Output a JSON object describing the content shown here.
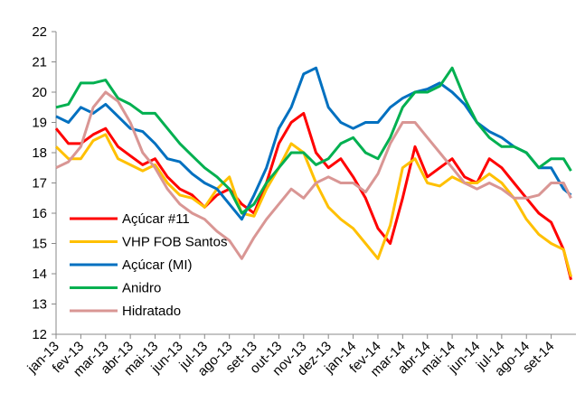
{
  "chart_data": {
    "type": "line",
    "x": [
      0,
      0.5,
      1,
      1.5,
      2,
      2.5,
      3,
      3.5,
      4,
      4.5,
      5,
      5.5,
      6,
      6.5,
      7,
      7.5,
      8,
      8.5,
      9,
      9.5,
      10,
      10.5,
      11,
      11.5,
      12,
      12.5,
      13,
      13.5,
      14,
      14.5,
      15,
      15.5,
      16,
      16.5,
      17,
      17.5,
      18,
      18.5,
      19,
      19.5,
      20,
      20.5,
      20.8
    ],
    "xlim": [
      0,
      21
    ],
    "xticks": [
      {
        "value": 0,
        "label": "jan-13"
      },
      {
        "value": 1,
        "label": "fev-13"
      },
      {
        "value": 2,
        "label": "mar-13"
      },
      {
        "value": 3,
        "label": "abr-13"
      },
      {
        "value": 4,
        "label": "mai-13"
      },
      {
        "value": 5,
        "label": "jun-13"
      },
      {
        "value": 6,
        "label": "jul-13"
      },
      {
        "value": 7,
        "label": "ago-13"
      },
      {
        "value": 8,
        "label": "set-13"
      },
      {
        "value": 9,
        "label": "out-13"
      },
      {
        "value": 10,
        "label": "nov-13"
      },
      {
        "value": 11,
        "label": "dez-13"
      },
      {
        "value": 12,
        "label": "jan-14"
      },
      {
        "value": 13,
        "label": "fev-14"
      },
      {
        "value": 14,
        "label": "mar-14"
      },
      {
        "value": 15,
        "label": "abr-14"
      },
      {
        "value": 16,
        "label": "mai-14"
      },
      {
        "value": 17,
        "label": "jun-14"
      },
      {
        "value": 18,
        "label": "jul-14"
      },
      {
        "value": 19,
        "label": "ago-14"
      },
      {
        "value": 20,
        "label": "set-14"
      }
    ],
    "ylim": [
      12,
      22
    ],
    "yticks": [
      12,
      13,
      14,
      15,
      16,
      17,
      18,
      19,
      20,
      21,
      22
    ],
    "legend": "lower left",
    "series": [
      {
        "name": "Açúcar #11",
        "color": "#ff0000",
        "values": [
          18.8,
          18.3,
          18.3,
          18.6,
          18.8,
          18.2,
          17.9,
          17.6,
          17.8,
          17.2,
          16.8,
          16.6,
          16.2,
          16.6,
          16.8,
          16.3,
          16.0,
          17.0,
          18.3,
          19.0,
          19.3,
          18.0,
          17.5,
          17.8,
          17.2,
          16.5,
          15.5,
          15.0,
          16.5,
          18.2,
          17.2,
          17.5,
          17.8,
          17.2,
          17.0,
          17.8,
          17.5,
          17.0,
          16.5,
          16.0,
          15.7,
          14.8,
          13.8
        ]
      },
      {
        "name": "VHP FOB Santos",
        "color": "#ffc000",
        "values": [
          18.2,
          17.8,
          17.8,
          18.4,
          18.6,
          17.8,
          17.6,
          17.4,
          17.6,
          17.0,
          16.6,
          16.5,
          16.2,
          16.8,
          17.2,
          16.0,
          15.9,
          16.8,
          17.5,
          18.3,
          18.0,
          17.0,
          16.2,
          15.8,
          15.5,
          15.0,
          14.5,
          15.6,
          17.5,
          17.8,
          17.0,
          16.9,
          17.2,
          17.0,
          17.0,
          17.3,
          17.0,
          16.5,
          15.8,
          15.3,
          15.0,
          14.8,
          13.9
        ]
      },
      {
        "name": "Açúcar (MI)",
        "color": "#0070c0",
        "values": [
          19.2,
          19.0,
          19.5,
          19.3,
          19.6,
          19.2,
          18.8,
          18.7,
          18.3,
          17.8,
          17.7,
          17.3,
          17.0,
          16.8,
          16.3,
          15.8,
          16.6,
          17.5,
          18.8,
          19.5,
          20.6,
          20.8,
          19.5,
          19.0,
          18.8,
          19.0,
          19.0,
          19.5,
          19.8,
          20.0,
          20.1,
          20.3,
          20.0,
          19.6,
          19.0,
          18.7,
          18.5,
          18.2,
          18.0,
          17.5,
          17.5,
          16.8,
          16.6
        ]
      },
      {
        "name": "Anidro",
        "color": "#00b050",
        "values": [
          19.5,
          19.6,
          20.3,
          20.3,
          20.4,
          19.8,
          19.6,
          19.3,
          19.3,
          18.8,
          18.3,
          17.9,
          17.5,
          17.2,
          16.8,
          16.0,
          16.3,
          17.0,
          17.5,
          18.0,
          18.0,
          17.6,
          17.8,
          18.3,
          18.5,
          18.0,
          17.8,
          18.5,
          19.5,
          20.0,
          20.0,
          20.2,
          20.8,
          19.8,
          19.0,
          18.5,
          18.2,
          18.2,
          18.0,
          17.5,
          17.8,
          17.8,
          17.4
        ]
      },
      {
        "name": "Hidratado",
        "color": "#d99694",
        "values": [
          17.5,
          17.7,
          18.2,
          19.5,
          20.0,
          19.7,
          19.0,
          18.0,
          17.5,
          16.8,
          16.3,
          16.0,
          15.8,
          15.4,
          15.1,
          14.5,
          15.2,
          15.8,
          16.3,
          16.8,
          16.5,
          17.0,
          17.2,
          17.0,
          17.0,
          16.7,
          17.3,
          18.3,
          19.0,
          19.0,
          18.5,
          18.0,
          17.5,
          17.0,
          16.8,
          17.0,
          16.8,
          16.5,
          16.5,
          16.6,
          17.0,
          17.0,
          16.5
        ]
      }
    ]
  }
}
